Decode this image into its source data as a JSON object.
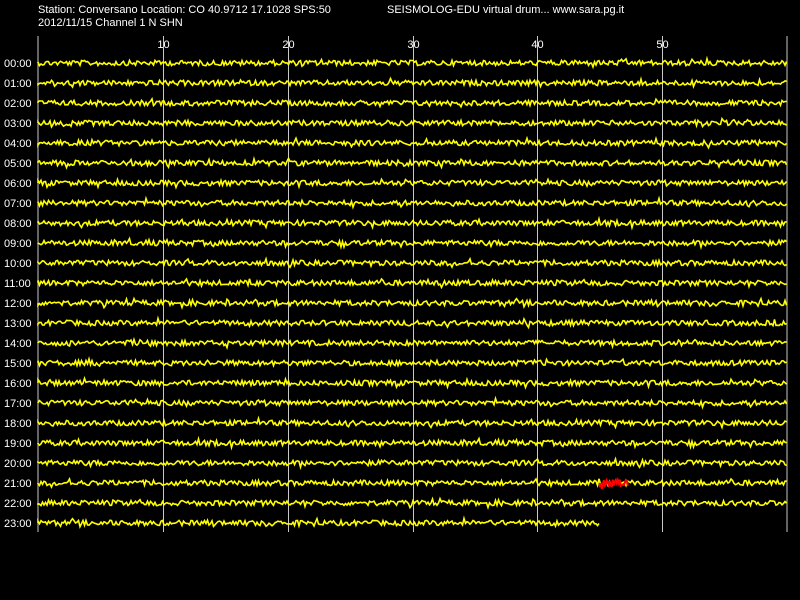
{
  "header": {
    "station_line": "Station: Conversano Location: CO 40.9712 17.1028 SPS:50",
    "date_channel_line": "2012/11/15  Channel 1 N SHN",
    "brand_line": "SEISMOLOG-EDU virtual drum... www.sara.pg.it"
  },
  "drum": {
    "minute_ticks": [
      10,
      20,
      30,
      40,
      50
    ],
    "minute_range": [
      0,
      60
    ],
    "hours": [
      "00:00",
      "01:00",
      "02:00",
      "03:00",
      "04:00",
      "05:00",
      "06:00",
      "07:00",
      "08:00",
      "09:00",
      "10:00",
      "11:00",
      "12:00",
      "13:00",
      "14:00",
      "15:00",
      "16:00",
      "17:00",
      "18:00",
      "19:00",
      "20:00",
      "21:00",
      "22:00",
      "23:00"
    ],
    "last_trace_end_minute": 45,
    "event": {
      "hour": "21:00",
      "start_minute": 45,
      "end_minute": 47.3
    },
    "colors": {
      "background": "#000000",
      "trace": "#ffff00",
      "event": "#ff0000",
      "grid": "#c8c8c8",
      "text": "#ffffff"
    }
  }
}
